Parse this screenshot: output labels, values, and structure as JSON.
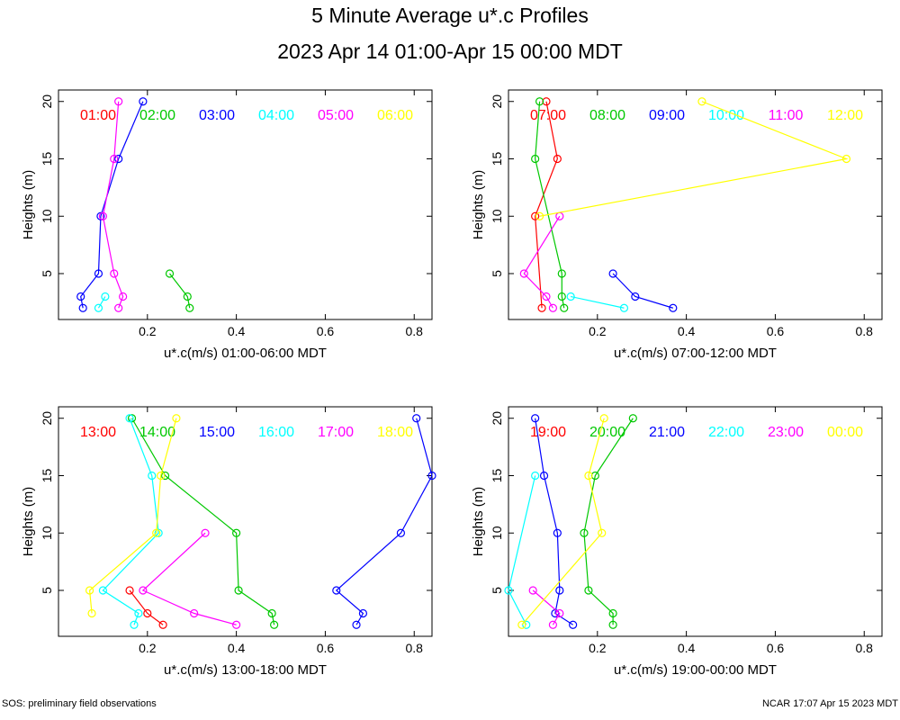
{
  "title": "5 Minute Average u*.c Profiles",
  "subtitle": "2023 Apr 14 01:00-Apr 15 00:00 MDT",
  "footer_left": "SOS: preliminary field observations",
  "footer_right": "NCAR 17:07 Apr 15 2023 MDT",
  "chart_data": [
    {
      "type": "line",
      "ylabel": "Heights (m)",
      "xlabel": "u*.c(m/s) 01:00-06:00 MDT",
      "xlim": [
        0.0,
        0.84
      ],
      "ylim": [
        1,
        21
      ],
      "xticks": [
        "0.2",
        "0.4",
        "0.6",
        "0.8"
      ],
      "yticks": [
        "5",
        "10",
        "15",
        "20"
      ],
      "xtick_values": [
        0.2,
        0.4,
        0.6,
        0.8
      ],
      "ytick_values": [
        5,
        10,
        15,
        20
      ],
      "series": [
        {
          "name": "01:00",
          "color": "#ff0000",
          "points": []
        },
        {
          "name": "02:00",
          "color": "#00c800",
          "points": [
            [
              0.25,
              5
            ],
            [
              0.29,
              3
            ],
            [
              0.295,
              2
            ]
          ]
        },
        {
          "name": "03:00",
          "color": "#0000ff",
          "points": [
            [
              0.19,
              20
            ],
            [
              0.135,
              15
            ],
            [
              0.095,
              10
            ],
            [
              0.09,
              5
            ],
            [
              0.05,
              3
            ],
            [
              0.055,
              2
            ]
          ]
        },
        {
          "name": "04:00",
          "color": "#00ffff",
          "points": [
            [
              0.105,
              3
            ],
            [
              0.09,
              2
            ]
          ]
        },
        {
          "name": "05:00",
          "color": "#ff00ff",
          "points": [
            [
              0.135,
              20
            ],
            [
              0.125,
              15
            ],
            [
              0.1,
              10
            ],
            [
              0.125,
              5
            ],
            [
              0.145,
              3
            ],
            [
              0.135,
              2
            ]
          ]
        },
        {
          "name": "06:00",
          "color": "#ffff00",
          "points": []
        }
      ]
    },
    {
      "type": "line",
      "ylabel": "Heights (m)",
      "xlabel": "u*.c(m/s) 07:00-12:00 MDT",
      "xlim": [
        0.0,
        0.84
      ],
      "ylim": [
        1,
        21
      ],
      "xticks": [
        "0.2",
        "0.4",
        "0.6",
        "0.8"
      ],
      "yticks": [
        "5",
        "10",
        "15",
        "20"
      ],
      "xtick_values": [
        0.2,
        0.4,
        0.6,
        0.8
      ],
      "ytick_values": [
        5,
        10,
        15,
        20
      ],
      "series": [
        {
          "name": "07:00",
          "color": "#ff0000",
          "points": [
            [
              0.085,
              20
            ],
            [
              0.11,
              15
            ],
            [
              0.06,
              10
            ],
            [
              0.075,
              2
            ]
          ]
        },
        {
          "name": "08:00",
          "color": "#00c800",
          "points": [
            [
              0.07,
              20
            ],
            [
              0.06,
              15
            ],
            [
              0.12,
              5
            ],
            [
              0.12,
              3
            ],
            [
              0.125,
              2
            ]
          ]
        },
        {
          "name": "09:00",
          "color": "#0000ff",
          "points": [
            [
              0.235,
              5
            ],
            [
              0.285,
              3
            ],
            [
              0.37,
              2
            ]
          ]
        },
        {
          "name": "10:00",
          "color": "#00ffff",
          "points": [
            [
              0.14,
              3
            ],
            [
              0.26,
              2
            ]
          ]
        },
        {
          "name": "11:00",
          "color": "#ff00ff",
          "points": [
            [
              0.115,
              10
            ],
            [
              0.035,
              5
            ],
            [
              0.085,
              3
            ],
            [
              0.1,
              2
            ]
          ]
        },
        {
          "name": "12:00",
          "color": "#ffff00",
          "points": [
            [
              0.435,
              20
            ],
            [
              0.76,
              15
            ],
            [
              0.07,
              10
            ]
          ]
        }
      ]
    },
    {
      "type": "line",
      "ylabel": "Heights (m)",
      "xlabel": "u*.c(m/s) 13:00-18:00 MDT",
      "xlim": [
        0.0,
        0.84
      ],
      "ylim": [
        1,
        21
      ],
      "xticks": [
        "0.2",
        "0.4",
        "0.6",
        "0.8"
      ],
      "yticks": [
        "5",
        "10",
        "15",
        "20"
      ],
      "xtick_values": [
        0.2,
        0.4,
        0.6,
        0.8
      ],
      "ytick_values": [
        5,
        10,
        15,
        20
      ],
      "series": [
        {
          "name": "13:00",
          "color": "#ff0000",
          "points": [
            [
              0.16,
              5
            ],
            [
              0.2,
              3
            ],
            [
              0.235,
              2
            ]
          ]
        },
        {
          "name": "14:00",
          "color": "#00c800",
          "points": [
            [
              0.165,
              20
            ],
            [
              0.24,
              15
            ],
            [
              0.4,
              10
            ],
            [
              0.405,
              5
            ],
            [
              0.48,
              3
            ],
            [
              0.485,
              2
            ]
          ]
        },
        {
          "name": "15:00",
          "color": "#0000ff",
          "points": [
            [
              0.805,
              20
            ],
            [
              0.84,
              15
            ],
            [
              0.77,
              10
            ],
            [
              0.625,
              5
            ],
            [
              0.685,
              3
            ],
            [
              0.67,
              2
            ]
          ]
        },
        {
          "name": "16:00",
          "color": "#00ffff",
          "points": [
            [
              0.16,
              20
            ],
            [
              0.21,
              15
            ],
            [
              0.225,
              10
            ],
            [
              0.1,
              5
            ],
            [
              0.18,
              3
            ],
            [
              0.17,
              2
            ]
          ]
        },
        {
          "name": "17:00",
          "color": "#ff00ff",
          "points": [
            [
              0.33,
              10
            ],
            [
              0.19,
              5
            ],
            [
              0.305,
              3
            ],
            [
              0.4,
              2
            ]
          ]
        },
        {
          "name": "18:00",
          "color": "#ffff00",
          "points": [
            [
              0.265,
              20
            ],
            [
              0.23,
              15
            ],
            [
              0.22,
              10
            ],
            [
              0.07,
              5
            ],
            [
              0.075,
              3
            ]
          ]
        }
      ]
    },
    {
      "type": "line",
      "ylabel": "Heights (m)",
      "xlabel": "u*.c(m/s) 19:00-00:00 MDT",
      "xlim": [
        0.0,
        0.84
      ],
      "ylim": [
        1,
        21
      ],
      "xticks": [
        "0.2",
        "0.4",
        "0.6",
        "0.8"
      ],
      "yticks": [
        "5",
        "10",
        "15",
        "20"
      ],
      "xtick_values": [
        0.2,
        0.4,
        0.6,
        0.8
      ],
      "ytick_values": [
        5,
        10,
        15,
        20
      ],
      "series": [
        {
          "name": "19:00",
          "color": "#ff0000",
          "points": []
        },
        {
          "name": "20:00",
          "color": "#00c800",
          "points": [
            [
              0.28,
              20
            ],
            [
              0.195,
              15
            ],
            [
              0.17,
              10
            ],
            [
              0.18,
              5
            ],
            [
              0.235,
              3
            ],
            [
              0.235,
              2
            ]
          ]
        },
        {
          "name": "21:00",
          "color": "#0000ff",
          "points": [
            [
              0.06,
              20
            ],
            [
              0.08,
              15
            ],
            [
              0.11,
              10
            ],
            [
              0.115,
              5
            ],
            [
              0.105,
              3
            ],
            [
              0.145,
              2
            ]
          ]
        },
        {
          "name": "22:00",
          "color": "#00ffff",
          "points": [
            [
              0.06,
              15
            ],
            [
              0.0,
              5
            ],
            [
              0.04,
              2
            ]
          ]
        },
        {
          "name": "23:00",
          "color": "#ff00ff",
          "points": [
            [
              0.055,
              5
            ],
            [
              0.115,
              3
            ],
            [
              0.1,
              2
            ]
          ]
        },
        {
          "name": "00:00",
          "color": "#ffff00",
          "points": [
            [
              0.215,
              20
            ],
            [
              0.18,
              15
            ],
            [
              0.21,
              10
            ],
            [
              0.03,
              2
            ]
          ]
        }
      ]
    }
  ]
}
